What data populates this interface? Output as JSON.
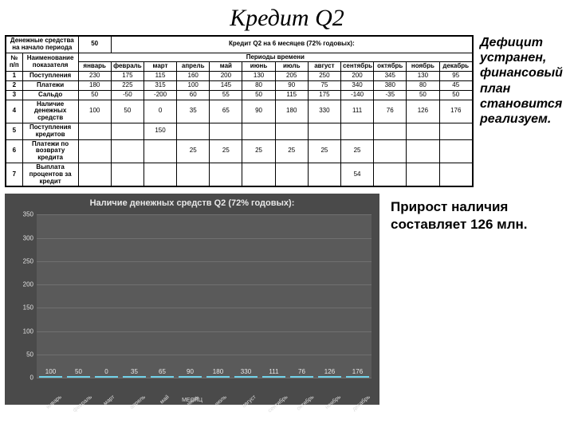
{
  "title": "Кредит Q2",
  "table": {
    "topLeft": "Денежные средства на начало периода",
    "startVal": "50",
    "creditHeader": "Кредит Q2 на 6 месяцев (72% годовых):",
    "numCol": "№ п/п",
    "indicatorCol": "Наименование показателя",
    "periodsHeader": "Периоды времени",
    "months": [
      "январь",
      "февраль",
      "март",
      "апрель",
      "май",
      "июнь",
      "июль",
      "август",
      "сентябрь",
      "октябрь",
      "ноябрь",
      "декабрь"
    ],
    "rows": [
      {
        "n": "1",
        "name": "Поступления",
        "v": [
          "230",
          "175",
          "115",
          "160",
          "200",
          "130",
          "205",
          "250",
          "200",
          "345",
          "130",
          "95"
        ]
      },
      {
        "n": "2",
        "name": "Платежи",
        "v": [
          "180",
          "225",
          "315",
          "100",
          "145",
          "80",
          "90",
          "75",
          "340",
          "380",
          "80",
          "45"
        ]
      },
      {
        "n": "3",
        "name": "Сальдо",
        "v": [
          "50",
          "-50",
          "-200",
          "60",
          "55",
          "50",
          "115",
          "175",
          "-140",
          "-35",
          "50",
          "50"
        ]
      },
      {
        "n": "4",
        "name": "Наличие денежных средств",
        "v": [
          "100",
          "50",
          "0",
          "35",
          "65",
          "90",
          "180",
          "330",
          "111",
          "76",
          "126",
          "176"
        ]
      },
      {
        "n": "5",
        "name": "Поступления кредитов",
        "v": [
          "",
          "",
          "150",
          "",
          "",
          "",
          "",
          "",
          "",
          "",
          "",
          ""
        ]
      },
      {
        "n": "6",
        "name": "Платежи по возврату кредита",
        "v": [
          "",
          "",
          "",
          "25",
          "25",
          "25",
          "25",
          "25",
          "25",
          "",
          "",
          ""
        ]
      },
      {
        "n": "7",
        "name": "Выплата процентов за кредит",
        "v": [
          "",
          "",
          "",
          "",
          "",
          "",
          "",
          "",
          "54",
          "",
          "",
          ""
        ]
      }
    ]
  },
  "sideText1": "Дефицит устранен, финансовый план становится реализуем.",
  "sideText2": "Прирост наличия составляет 126 млн.",
  "chart": {
    "title": "Наличие денежных средств Q2 (72% годовых):",
    "ylabel": "НАЛИЧИЕ ДЕНЕЖНЫХ СРЕДСТВ",
    "xlabel": "МЕСЯЦ",
    "background": "#4a4a4a",
    "plotBackground": "#5a5a5a",
    "gridColor": "#707070",
    "barColor": "#3ba7c4",
    "barTopColor": "#6fd0e8",
    "ymax": 350,
    "ystep": 50,
    "categories": [
      "январь",
      "февраль",
      "март",
      "апрель",
      "май",
      "июнь",
      "июль",
      "август",
      "сентябрь",
      "октябрь",
      "ноябрь",
      "декабрь"
    ],
    "values": [
      100,
      50,
      0,
      35,
      65,
      90,
      180,
      330,
      111,
      76,
      126,
      176
    ]
  }
}
